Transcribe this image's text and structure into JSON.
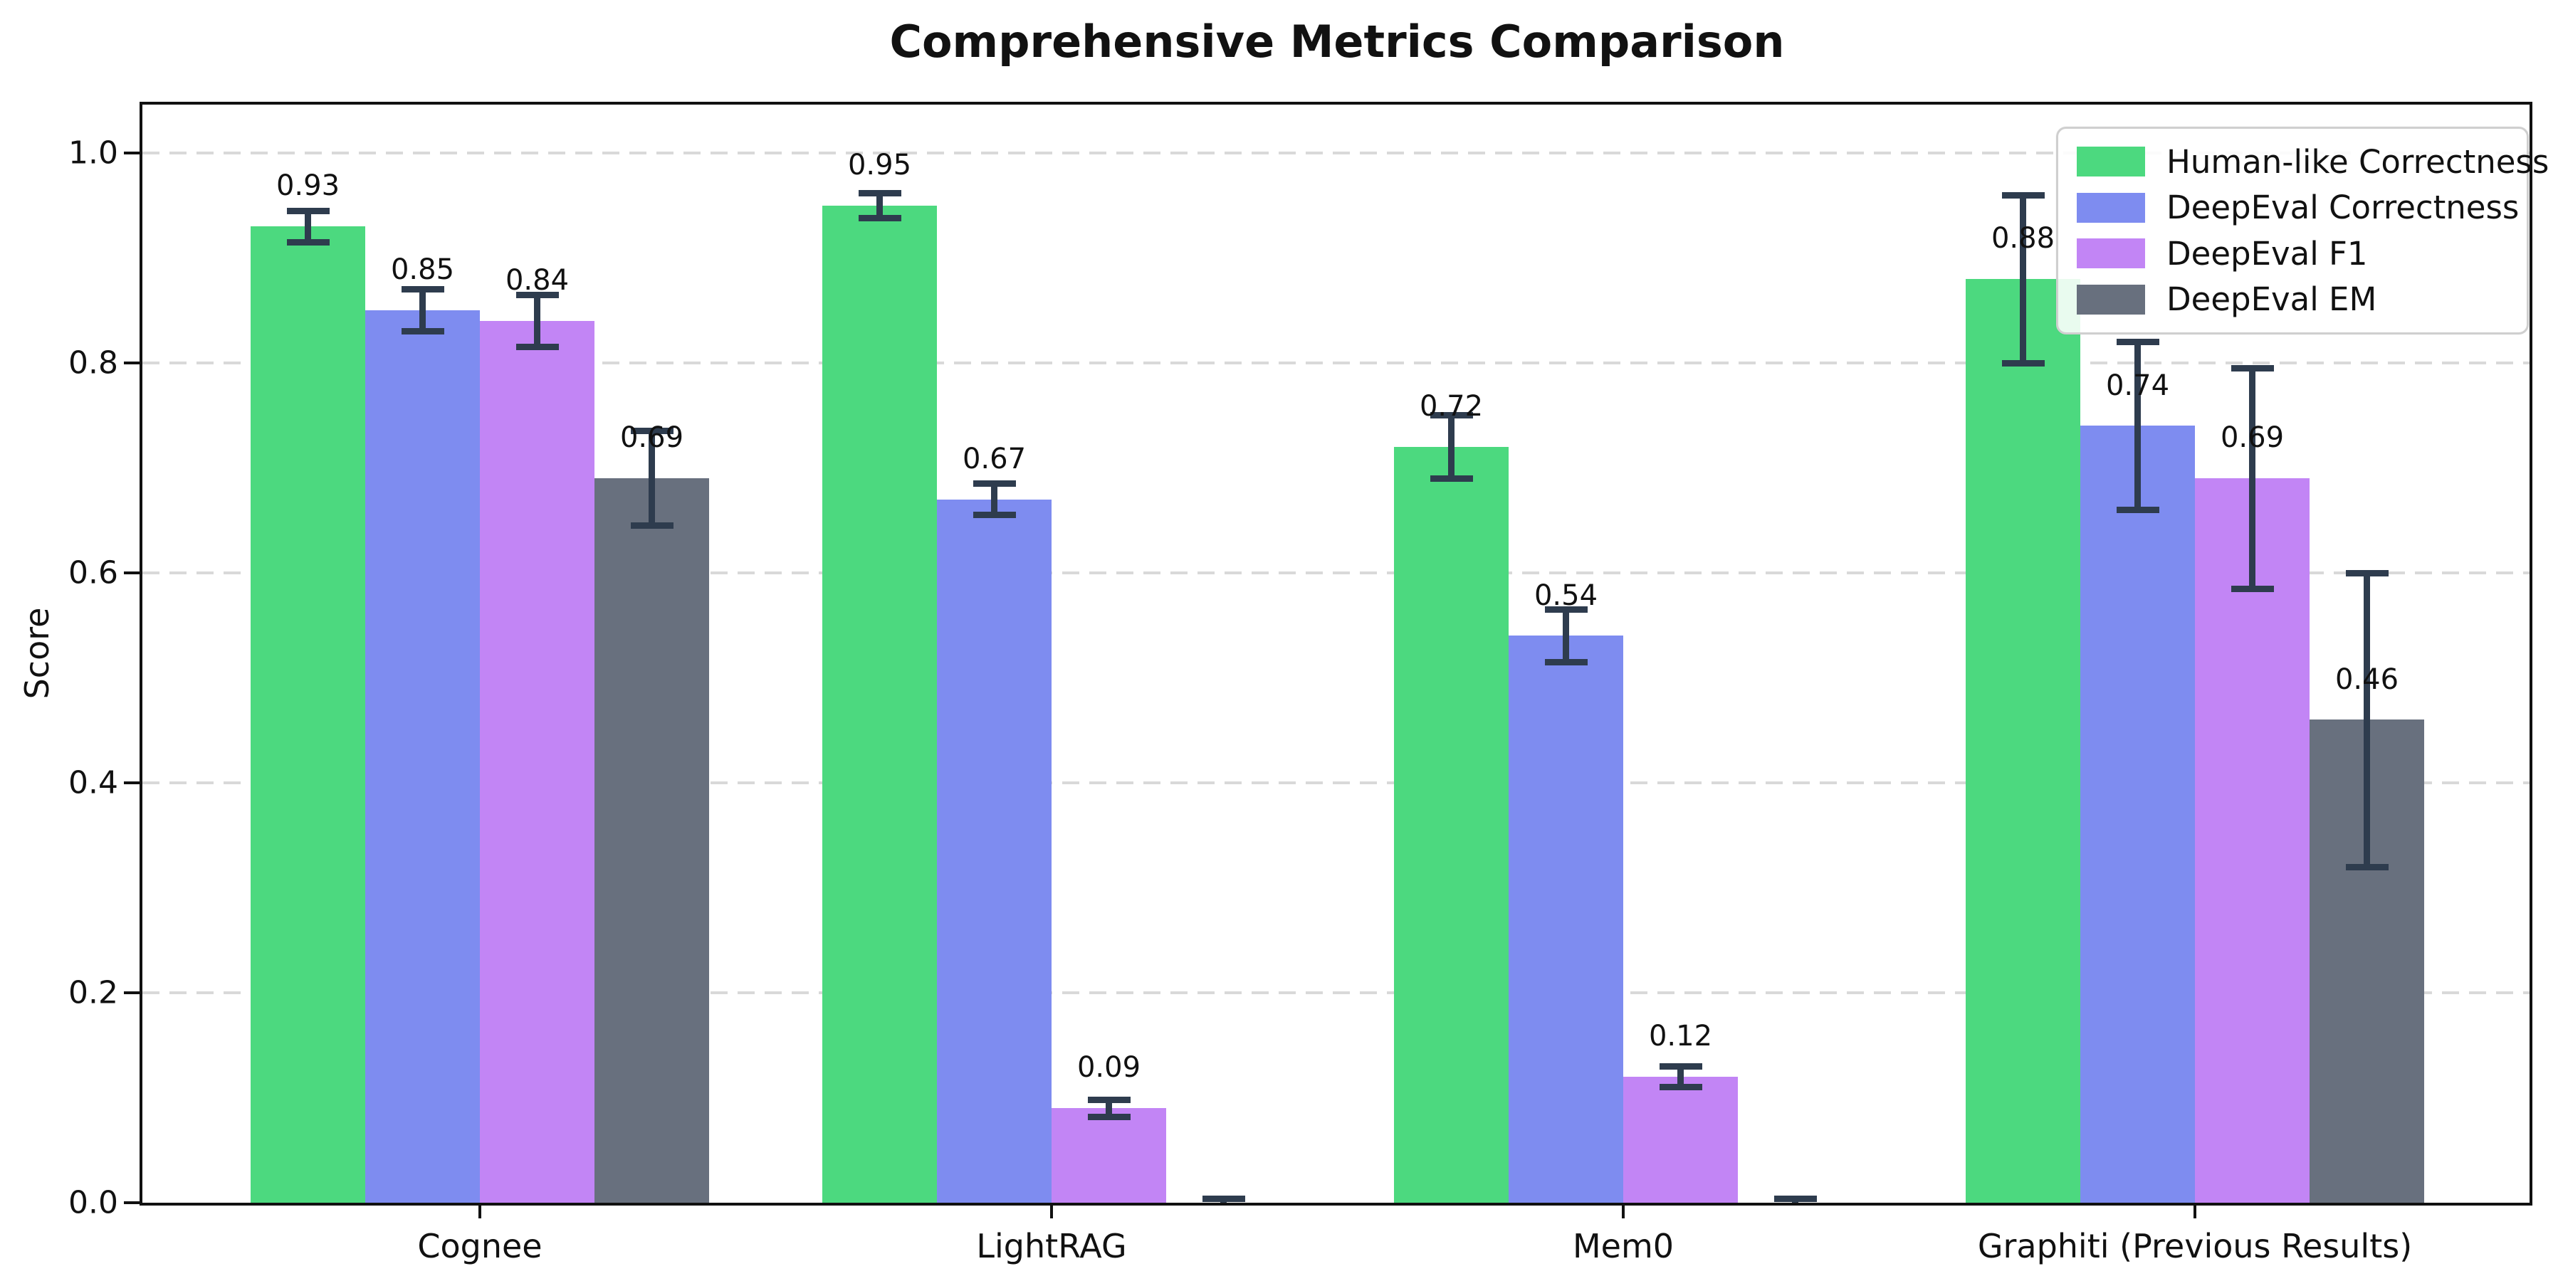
{
  "chart_data": {
    "type": "bar",
    "title": "Comprehensive Metrics Comparison",
    "ylabel": "Score",
    "xlabel": "",
    "categories": [
      "Cognee",
      "LightRAG",
      "Mem0",
      "Graphiti (Previous Results)"
    ],
    "series": [
      {
        "name": "Human-like Correctness",
        "color": "#4cd97f",
        "values": [
          0.93,
          0.95,
          0.72,
          0.88
        ],
        "errors": [
          0.015,
          0.012,
          0.03,
          0.08
        ],
        "labels": [
          "0.93",
          "0.95",
          "0.72",
          "0.88"
        ]
      },
      {
        "name": "DeepEval Correctness",
        "color": "#7e8cf0",
        "values": [
          0.85,
          0.67,
          0.54,
          0.74
        ],
        "errors": [
          0.02,
          0.015,
          0.025,
          0.08
        ],
        "labels": [
          "0.85",
          "0.67",
          "0.54",
          "0.74"
        ]
      },
      {
        "name": "DeepEval F1",
        "color": "#c285f5",
        "values": [
          0.84,
          0.09,
          0.12,
          0.69
        ],
        "errors": [
          0.025,
          0.008,
          0.01,
          0.105
        ],
        "labels": [
          "0.84",
          "0.09",
          "0.12",
          "0.69"
        ]
      },
      {
        "name": "DeepEval EM",
        "color": "#68707e",
        "values": [
          0.69,
          0.0,
          0.0,
          0.46
        ],
        "errors": [
          0.045,
          0.004,
          0.004,
          0.14
        ],
        "labels": [
          "0.69",
          "",
          "",
          "0.46"
        ]
      }
    ],
    "ylim": [
      0.0,
      1.05
    ],
    "ytick_labels": [
      "0.0",
      "0.2",
      "0.4",
      "0.6",
      "0.8",
      "1.0"
    ],
    "ytick_values": [
      0.0,
      0.2,
      0.4,
      0.6,
      0.8,
      1.0
    ],
    "grid": "horizontal dashed",
    "gridline_color": "#d9d9d9",
    "errorbar_color": "#2e3c4e",
    "legend_position": "upper right",
    "background_color": "#ffffff"
  }
}
